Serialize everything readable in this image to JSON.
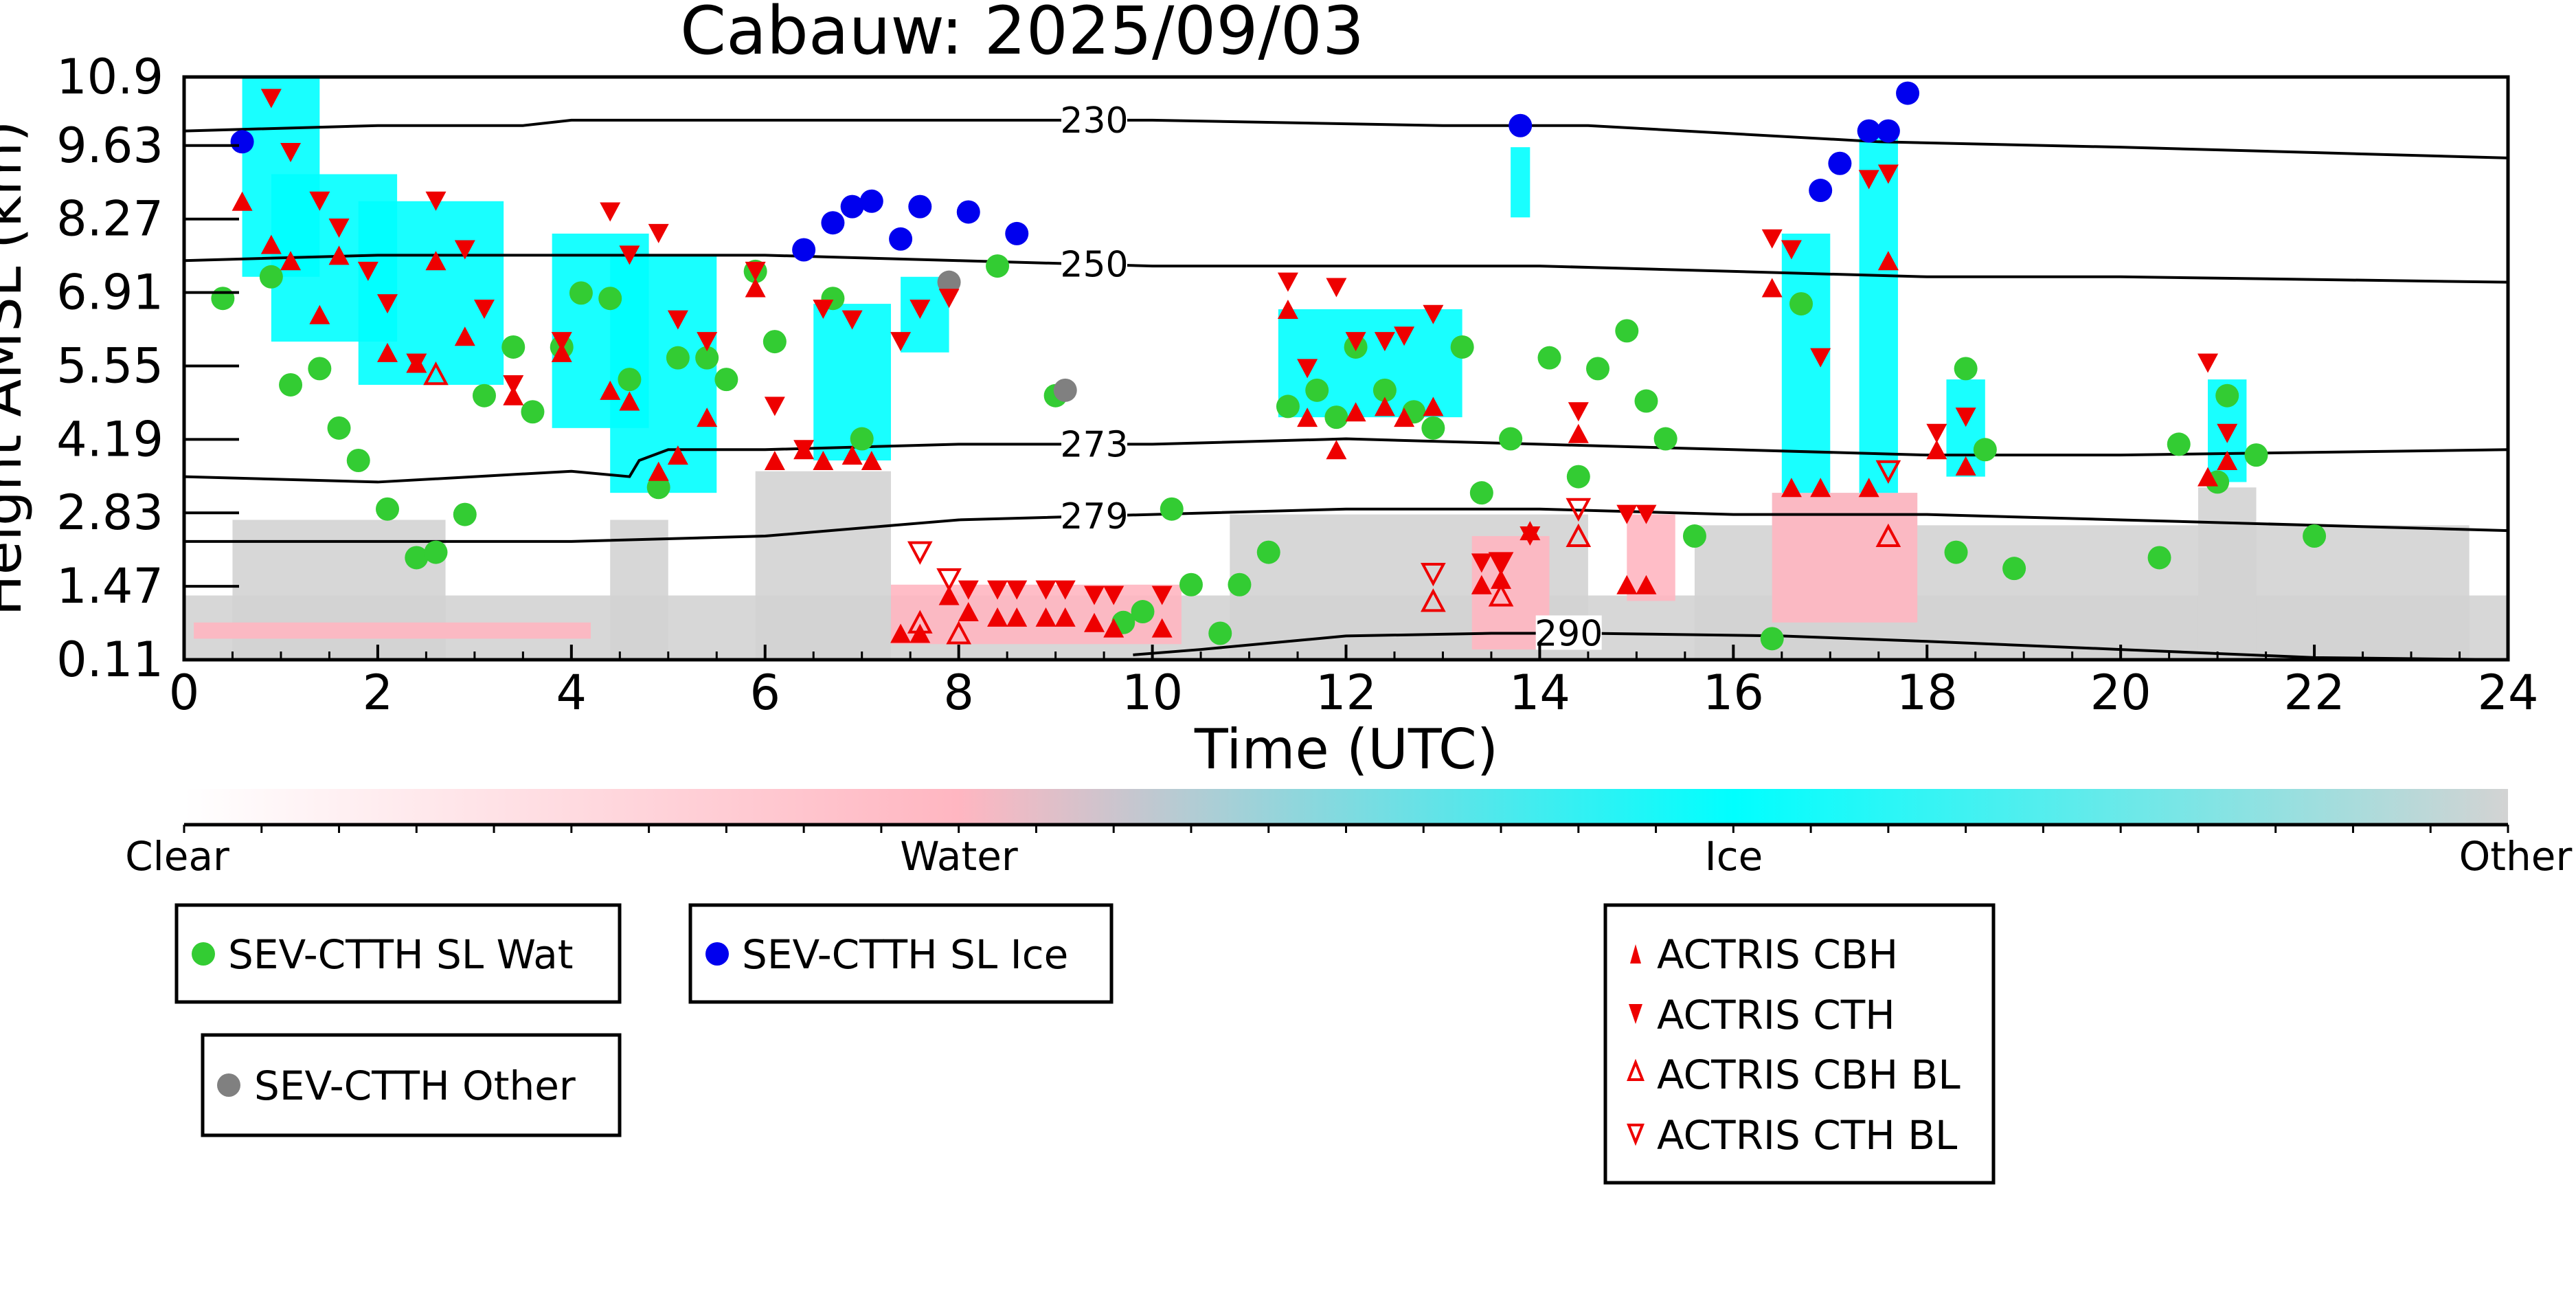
{
  "chart_data": {
    "type": "scatter",
    "title": "Cabauw: 2025/09/03",
    "xlabel": "Time (UTC)",
    "ylabel": "Height AMSL (km)",
    "xlim": [
      0,
      24
    ],
    "ylim": [
      0.11,
      10.9
    ],
    "x_ticks": [
      "0",
      "2",
      "4",
      "6",
      "8",
      "10",
      "12",
      "14",
      "16",
      "18",
      "20",
      "22",
      "24"
    ],
    "y_ticks": [
      "0.11",
      "1.47",
      "2.83",
      "4.19",
      "5.55",
      "6.91",
      "8.27",
      "9.63",
      "10.9"
    ],
    "y_tick_values": [
      0.11,
      1.47,
      2.83,
      4.19,
      5.55,
      6.91,
      8.27,
      9.63,
      10.9
    ],
    "grid": false,
    "colorbar": {
      "labels": [
        "Clear",
        "Water",
        "Ice",
        "Other"
      ],
      "colors": [
        "#ffffff",
        "#ffb6c1",
        "#00ffff",
        "#d3d3d3"
      ]
    },
    "background_classification": [
      {
        "class": "Other",
        "color": "#d3d3d3",
        "x": [
          0.0,
          24.0
        ],
        "y": [
          0.11,
          1.3
        ]
      },
      {
        "class": "Other",
        "color": "#d3d3d3",
        "x": [
          0.5,
          2.7
        ],
        "y": [
          0.11,
          2.7
        ]
      },
      {
        "class": "Other",
        "color": "#d3d3d3",
        "x": [
          4.4,
          5.0
        ],
        "y": [
          0.11,
          2.7
        ]
      },
      {
        "class": "Other",
        "color": "#d3d3d3",
        "x": [
          5.9,
          7.3
        ],
        "y": [
          0.11,
          3.6
        ]
      },
      {
        "class": "Other",
        "color": "#d3d3d3",
        "x": [
          10.8,
          14.5
        ],
        "y": [
          0.11,
          2.8
        ]
      },
      {
        "class": "Other",
        "color": "#d3d3d3",
        "x": [
          15.6,
          23.6
        ],
        "y": [
          0.11,
          2.6
        ]
      },
      {
        "class": "Other",
        "color": "#d3d3d3",
        "x": [
          16.4,
          17.9
        ],
        "y": [
          0.11,
          3.2
        ]
      },
      {
        "class": "Other",
        "color": "#d3d3d3",
        "x": [
          20.8,
          21.4
        ],
        "y": [
          0.11,
          3.3
        ]
      },
      {
        "class": "Water",
        "color": "#ffb6c1",
        "x": [
          0.1,
          4.2
        ],
        "y": [
          0.5,
          0.8
        ]
      },
      {
        "class": "Water",
        "color": "#ffb6c1",
        "x": [
          7.3,
          10.3
        ],
        "y": [
          0.4,
          1.5
        ]
      },
      {
        "class": "Water",
        "color": "#ffb6c1",
        "x": [
          13.3,
          14.1
        ],
        "y": [
          0.3,
          2.4
        ]
      },
      {
        "class": "Water",
        "color": "#ffb6c1",
        "x": [
          14.9,
          15.4
        ],
        "y": [
          1.2,
          2.8
        ]
      },
      {
        "class": "Water",
        "color": "#ffb6c1",
        "x": [
          16.4,
          17.9
        ],
        "y": [
          0.8,
          3.2
        ]
      },
      {
        "class": "Ice",
        "color": "#00ffff",
        "x": [
          0.6,
          1.4
        ],
        "y": [
          7.2,
          10.9
        ]
      },
      {
        "class": "Ice",
        "color": "#00ffff",
        "x": [
          0.9,
          2.2
        ],
        "y": [
          6.0,
          9.1
        ]
      },
      {
        "class": "Ice",
        "color": "#00ffff",
        "x": [
          1.8,
          3.3
        ],
        "y": [
          5.2,
          8.6
        ]
      },
      {
        "class": "Ice",
        "color": "#00ffff",
        "x": [
          3.8,
          4.8
        ],
        "y": [
          4.4,
          8.0
        ]
      },
      {
        "class": "Ice",
        "color": "#00ffff",
        "x": [
          4.4,
          5.5
        ],
        "y": [
          3.2,
          7.6
        ]
      },
      {
        "class": "Ice",
        "color": "#00ffff",
        "x": [
          6.5,
          7.3
        ],
        "y": [
          3.8,
          6.7
        ]
      },
      {
        "class": "Ice",
        "color": "#00ffff",
        "x": [
          7.4,
          7.9
        ],
        "y": [
          5.8,
          7.2
        ]
      },
      {
        "class": "Ice",
        "color": "#00ffff",
        "x": [
          11.3,
          13.2
        ],
        "y": [
          4.6,
          6.6
        ]
      },
      {
        "class": "Ice",
        "color": "#00ffff",
        "x": [
          13.7,
          13.9
        ],
        "y": [
          8.3,
          9.6
        ]
      },
      {
        "class": "Ice",
        "color": "#00ffff",
        "x": [
          16.5,
          17.0
        ],
        "y": [
          3.2,
          8.0
        ]
      },
      {
        "class": "Ice",
        "color": "#00ffff",
        "x": [
          17.3,
          17.7
        ],
        "y": [
          3.2,
          9.9
        ]
      },
      {
        "class": "Ice",
        "color": "#00ffff",
        "x": [
          18.2,
          18.6
        ],
        "y": [
          3.5,
          5.3
        ]
      },
      {
        "class": "Ice",
        "color": "#00ffff",
        "x": [
          20.9,
          21.3
        ],
        "y": [
          3.4,
          5.3
        ]
      }
    ],
    "contours": [
      {
        "label": "230",
        "label_x": 9.4,
        "x": [
          0,
          2,
          3.5,
          4,
          7,
          10,
          13,
          14.5,
          17.5,
          20,
          22,
          24
        ],
        "y": [
          9.9,
          10.0,
          10.0,
          10.1,
          10.1,
          10.1,
          10.0,
          10.0,
          9.7,
          9.6,
          9.5,
          9.4
        ]
      },
      {
        "label": "250",
        "label_x": 9.4,
        "x": [
          0,
          2,
          4,
          6,
          8,
          10,
          12,
          14,
          16,
          18,
          20,
          24
        ],
        "y": [
          7.5,
          7.6,
          7.6,
          7.6,
          7.5,
          7.4,
          7.4,
          7.4,
          7.3,
          7.2,
          7.2,
          7.1
        ]
      },
      {
        "label": "273",
        "label_x": 9.4,
        "x": [
          0,
          2,
          3,
          4,
          4.6,
          4.7,
          5,
          6,
          8,
          10,
          12,
          14,
          16,
          18,
          20,
          24
        ],
        "y": [
          3.5,
          3.4,
          3.5,
          3.6,
          3.5,
          3.8,
          4.0,
          4.0,
          4.1,
          4.1,
          4.2,
          4.1,
          4.0,
          3.9,
          3.9,
          4.0
        ]
      },
      {
        "label": "279",
        "label_x": 9.4,
        "x": [
          0,
          2,
          4,
          6,
          8,
          10,
          12,
          14,
          16,
          18,
          20,
          24
        ],
        "y": [
          2.3,
          2.3,
          2.3,
          2.4,
          2.7,
          2.8,
          2.9,
          2.9,
          2.8,
          2.8,
          2.7,
          2.5
        ]
      },
      {
        "label": "290",
        "label_x": 14.3,
        "x": [
          9.8,
          10.5,
          12,
          13.5,
          14.5,
          16.5,
          18,
          20,
          22,
          24
        ],
        "y": [
          0.2,
          0.3,
          0.55,
          0.6,
          0.6,
          0.55,
          0.45,
          0.3,
          0.15,
          0.11
        ]
      }
    ],
    "series": [
      {
        "name": "SEV-CTTH SL Wat",
        "marker": "circle",
        "color": "#33cc33",
        "x": [
          0.4,
          0.9,
          1.1,
          1.4,
          1.6,
          1.8,
          2.1,
          2.4,
          2.6,
          2.9,
          3.1,
          3.4,
          3.6,
          3.9,
          4.1,
          4.4,
          4.6,
          4.9,
          5.1,
          5.4,
          5.6,
          5.9,
          6.1,
          6.7,
          7.0,
          8.4,
          9.0,
          9.7,
          9.9,
          10.2,
          10.4,
          10.7,
          10.9,
          11.2,
          11.4,
          11.7,
          11.9,
          12.1,
          12.4,
          12.7,
          12.9,
          13.2,
          13.4,
          13.7,
          14.1,
          14.4,
          14.6,
          14.9,
          15.1,
          15.3,
          15.6,
          16.4,
          16.7,
          18.3,
          18.4,
          18.6,
          18.9,
          20.4,
          20.6,
          21.0,
          21.1,
          21.4,
          22.0
        ],
        "y": [
          6.8,
          7.2,
          5.2,
          5.5,
          4.4,
          3.8,
          2.9,
          2.0,
          2.1,
          2.8,
          5.0,
          5.9,
          4.7,
          5.9,
          6.9,
          6.8,
          5.3,
          3.3,
          5.7,
          5.7,
          5.3,
          7.3,
          6.0,
          6.8,
          4.2,
          7.4,
          5.0,
          0.8,
          1.0,
          2.9,
          1.5,
          0.6,
          1.5,
          2.1,
          4.8,
          5.1,
          4.6,
          5.9,
          5.1,
          4.7,
          4.4,
          5.9,
          3.2,
          4.2,
          5.7,
          3.5,
          5.5,
          6.2,
          4.9,
          4.2,
          2.4,
          0.5,
          6.7,
          2.1,
          5.5,
          4.0,
          1.8,
          2.0,
          4.1,
          3.4,
          5.0,
          3.9,
          2.4
        ]
      },
      {
        "name": "SEV-CTTH SL Ice",
        "marker": "circle",
        "color": "#0000ee",
        "x": [
          0.6,
          6.4,
          6.7,
          6.9,
          7.1,
          7.4,
          7.6,
          8.1,
          8.6,
          13.8,
          16.9,
          17.1,
          17.4,
          17.6,
          17.8
        ],
        "y": [
          9.7,
          7.7,
          8.2,
          8.5,
          8.6,
          7.9,
          8.5,
          8.4,
          8.0,
          10.0,
          8.8,
          9.3,
          9.9,
          9.9,
          10.6
        ]
      },
      {
        "name": "SEV-CTTH Other",
        "marker": "circle",
        "color": "#808080",
        "x": [
          7.9,
          9.1
        ],
        "y": [
          7.1,
          5.1
        ]
      },
      {
        "name": "ACTRIS CBH",
        "marker": "triangle-up",
        "color": "#ee0000",
        "filled": true,
        "x": [
          0.6,
          0.9,
          1.1,
          1.4,
          1.6,
          2.1,
          2.4,
          2.6,
          2.9,
          3.4,
          3.9,
          4.4,
          4.6,
          4.9,
          5.1,
          5.4,
          5.9,
          6.1,
          6.4,
          6.6,
          6.9,
          7.1,
          7.4,
          7.6,
          7.9,
          8.1,
          8.4,
          8.6,
          8.9,
          9.1,
          9.4,
          9.6,
          10.1,
          11.4,
          11.6,
          11.9,
          12.1,
          12.4,
          12.6,
          12.9,
          13.4,
          13.6,
          13.9,
          14.4,
          14.9,
          15.1,
          16.4,
          16.6,
          16.9,
          17.4,
          17.6,
          18.1,
          18.4,
          20.9,
          21.1
        ],
        "y": [
          8.6,
          7.8,
          7.5,
          6.5,
          7.6,
          5.8,
          5.6,
          7.5,
          6.1,
          5.0,
          5.8,
          5.1,
          4.9,
          3.6,
          3.9,
          4.6,
          7.0,
          3.8,
          4.0,
          3.8,
          3.9,
          3.8,
          0.6,
          0.6,
          1.3,
          1.0,
          0.9,
          0.9,
          0.9,
          0.9,
          0.8,
          0.7,
          0.7,
          6.6,
          4.6,
          4.0,
          4.7,
          4.8,
          4.6,
          4.8,
          1.5,
          1.6,
          2.5,
          4.3,
          1.5,
          1.5,
          7.0,
          3.3,
          3.3,
          3.3,
          7.5,
          4.0,
          3.7,
          3.5,
          3.8
        ]
      },
      {
        "name": "ACTRIS CTH",
        "marker": "triangle-down",
        "color": "#ee0000",
        "filled": true,
        "x": [
          0.9,
          1.1,
          1.4,
          1.6,
          1.9,
          2.1,
          2.4,
          2.6,
          2.9,
          3.1,
          3.4,
          3.9,
          4.4,
          4.6,
          4.9,
          5.1,
          5.4,
          5.9,
          6.1,
          6.4,
          6.6,
          6.9,
          7.4,
          7.6,
          7.9,
          8.1,
          8.4,
          8.6,
          8.9,
          9.1,
          9.4,
          9.6,
          10.1,
          11.4,
          11.6,
          11.9,
          12.1,
          12.4,
          12.6,
          12.9,
          13.4,
          13.6,
          13.9,
          14.4,
          14.9,
          15.1,
          16.4,
          16.6,
          16.9,
          17.4,
          17.6,
          18.1,
          18.4,
          20.9,
          21.1
        ],
        "y": [
          10.5,
          9.5,
          8.6,
          8.1,
          7.3,
          6.7,
          5.6,
          8.6,
          7.7,
          6.6,
          5.2,
          6.0,
          8.4,
          7.6,
          8.0,
          6.4,
          6.0,
          7.3,
          4.8,
          4.0,
          6.6,
          6.4,
          6.0,
          6.6,
          6.8,
          1.4,
          1.4,
          1.4,
          1.4,
          1.4,
          1.3,
          1.3,
          1.3,
          7.1,
          5.5,
          7.0,
          6.0,
          6.0,
          6.1,
          6.5,
          1.9,
          1.9,
          2.4,
          4.7,
          2.8,
          2.8,
          7.9,
          7.7,
          5.7,
          9.0,
          9.1,
          4.3,
          4.6,
          5.6,
          4.3
        ]
      },
      {
        "name": "ACTRIS CBH BL",
        "marker": "triangle-up",
        "color": "#ee0000",
        "filled": false,
        "x": [
          2.6,
          7.6,
          8.0,
          12.9,
          13.6,
          14.4,
          17.6
        ],
        "y": [
          5.4,
          0.8,
          0.6,
          1.2,
          1.3,
          2.4,
          2.4
        ]
      },
      {
        "name": "ACTRIS CTH BL",
        "marker": "triangle-down",
        "color": "#ee0000",
        "filled": false,
        "x": [
          7.6,
          7.9,
          12.9,
          13.6,
          14.4,
          17.6
        ],
        "y": [
          2.1,
          1.6,
          1.7,
          1.9,
          2.9,
          3.6
        ]
      }
    ]
  }
}
